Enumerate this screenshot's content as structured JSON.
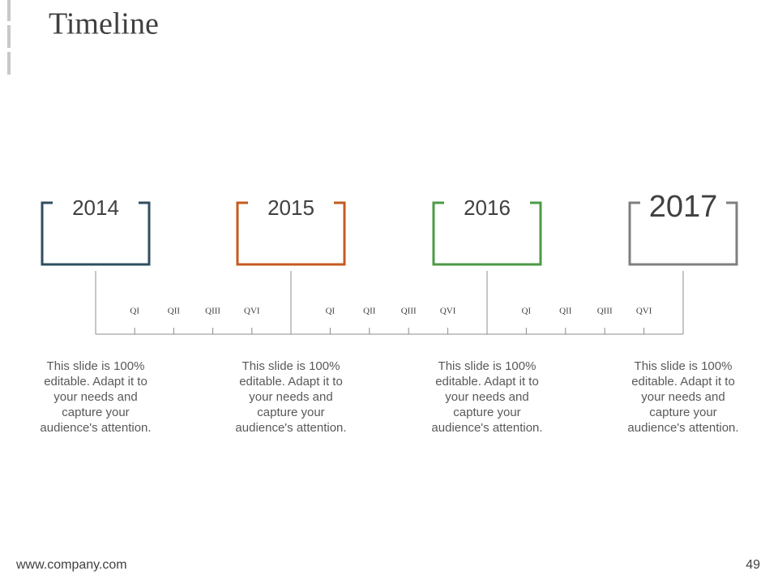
{
  "header": {
    "title": "Timeline"
  },
  "years": [
    {
      "label": "2014",
      "color": "#2f4e60"
    },
    {
      "label": "2015",
      "color": "#c55a1f"
    },
    {
      "label": "2016",
      "color": "#4c9a45"
    },
    {
      "label": "2017",
      "color": "#7f7f7f"
    }
  ],
  "quarters": [
    [
      "QI",
      "QII",
      "QIII",
      "QVI"
    ],
    [
      "QI",
      "QII",
      "QIII",
      "QVI"
    ],
    [
      "QI",
      "QII",
      "QIII",
      "QVI"
    ]
  ],
  "descriptions": [
    [
      "This slide is 100%",
      "editable. Adapt it to",
      "your needs and",
      "capture your",
      "audience's attention."
    ],
    [
      "This slide is 100%",
      "editable. Adapt it to",
      "your needs and",
      "capture your",
      "audience's attention."
    ],
    [
      "This slide is 100%",
      "editable. Adapt it to",
      "your needs and",
      "capture your",
      "audience's attention."
    ],
    [
      "This slide is 100%",
      "editable. Adapt it to",
      "your needs and",
      "capture your",
      "audience's attention."
    ]
  ],
  "footer": {
    "url": "www.company.com",
    "page": "49"
  }
}
